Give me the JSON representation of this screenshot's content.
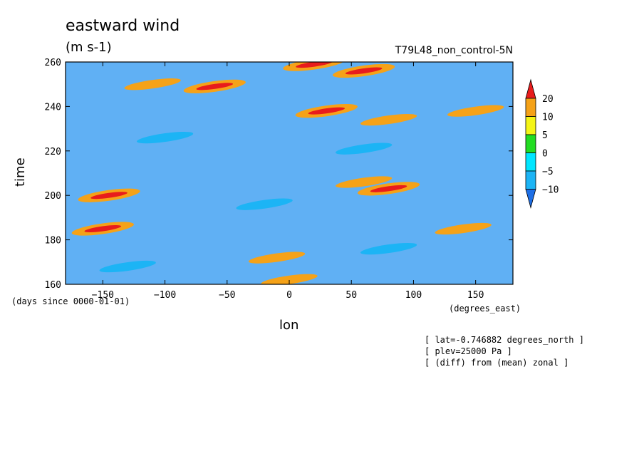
{
  "chart_data": {
    "type": "heatmap",
    "title": "eastward wind",
    "units": "(m s-1)",
    "run_label": "T79L48_non_control-5N",
    "xlabel": "lon",
    "ylabel": "time",
    "x_units": "(degrees_east)",
    "y_units": "(days since 0000-01-01)",
    "xlim": [
      -180,
      180
    ],
    "ylim": [
      160,
      260
    ],
    "x_ticks": [
      -150,
      -100,
      -50,
      0,
      50,
      100,
      150
    ],
    "y_ticks": [
      160,
      180,
      200,
      220,
      240,
      260
    ],
    "x_tick_labels": [
      "−150",
      "−100",
      "−50",
      "0",
      "50",
      "100",
      "150"
    ],
    "y_tick_labels": [
      "160",
      "180",
      "200",
      "220",
      "240",
      "260"
    ],
    "colorbar": {
      "levels": [
        -10,
        -5,
        0,
        5,
        10,
        20
      ],
      "labels": [
        "−10",
        "−5",
        "0",
        "5",
        "10",
        "20"
      ],
      "colors": [
        "#1e6fe6",
        "#1cb4f5",
        "#00e6ff",
        "#22dd22",
        "#f5f516",
        "#f5a218",
        "#e81c1c"
      ],
      "extend": "both"
    },
    "annotations": [
      "[ lat=-0.746882 degrees_north ]",
      "[ plev=25000 Pa ]",
      "[ (diff) from (mean) zonal ]"
    ],
    "notable_features": [
      {
        "lon": 20,
        "time": 259,
        "value": 20
      },
      {
        "lon": 60,
        "time": 256,
        "value": 20
      },
      {
        "lon": -110,
        "time": 250,
        "value": 10
      },
      {
        "lon": -60,
        "time": 249,
        "value": 20
      },
      {
        "lon": 30,
        "time": 238,
        "value": 20
      },
      {
        "lon": 80,
        "time": 234,
        "value": 10
      },
      {
        "lon": 150,
        "time": 238,
        "value": 10
      },
      {
        "lon": 60,
        "time": 206,
        "value": 10
      },
      {
        "lon": 80,
        "time": 203,
        "value": 20
      },
      {
        "lon": -145,
        "time": 200,
        "value": 20
      },
      {
        "lon": -150,
        "time": 185,
        "value": 20
      },
      {
        "lon": 140,
        "time": 185,
        "value": 10
      },
      {
        "lon": -10,
        "time": 172,
        "value": 10
      },
      {
        "lon": 0,
        "time": 162,
        "value": 10
      },
      {
        "lon": -100,
        "time": 226,
        "value": -10
      },
      {
        "lon": 60,
        "time": 221,
        "value": -10
      },
      {
        "lon": -20,
        "time": 196,
        "value": -10
      },
      {
        "lon": 80,
        "time": 176,
        "value": -10
      },
      {
        "lon": -130,
        "time": 168,
        "value": -10
      }
    ]
  }
}
